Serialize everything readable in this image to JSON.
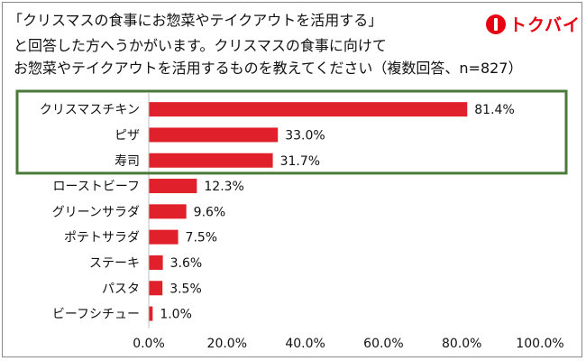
{
  "title_lines": [
    "「クリスマスの食事にお惣菜やテイクアウトを活用する」",
    "と回答した方へうかがいます。クリスマスの食事に向けて",
    "お惣菜やテイクアウトを活用するものを教えてください（複数回答、n=827）"
  ],
  "logo": {
    "text": "トクバイ",
    "icon": "tokubai-logo-icon",
    "color": "#e60012"
  },
  "colors": {
    "bar": "#e0202a",
    "highlight_box": "#4a7a3a",
    "axis": "#bfbfbf"
  },
  "chart_data": {
    "type": "bar",
    "orientation": "horizontal",
    "categories": [
      "クリスマスチキン",
      "ピザ",
      "寿司",
      "ローストビーフ",
      "グリーンサラダ",
      "ポテトサラダ",
      "ステーキ",
      "パスタ",
      "ビーフシチュー"
    ],
    "values": [
      81.4,
      33.0,
      31.7,
      12.3,
      9.6,
      7.5,
      3.6,
      3.5,
      1.0
    ],
    "value_labels": [
      "81.4%",
      "33.0%",
      "31.7%",
      "12.3%",
      "9.6%",
      "7.5%",
      "3.6%",
      "3.5%",
      "1.0%"
    ],
    "xlim": [
      0,
      100
    ],
    "x_ticks": [
      0,
      20,
      40,
      60,
      80,
      100
    ],
    "x_tick_labels": [
      "0.0%",
      "20.0%",
      "40.0%",
      "60.0%",
      "80.0%",
      "100.0%"
    ],
    "highlighted_categories": [
      "クリスマスチキン",
      "ピザ",
      "寿司"
    ],
    "grid": false
  }
}
